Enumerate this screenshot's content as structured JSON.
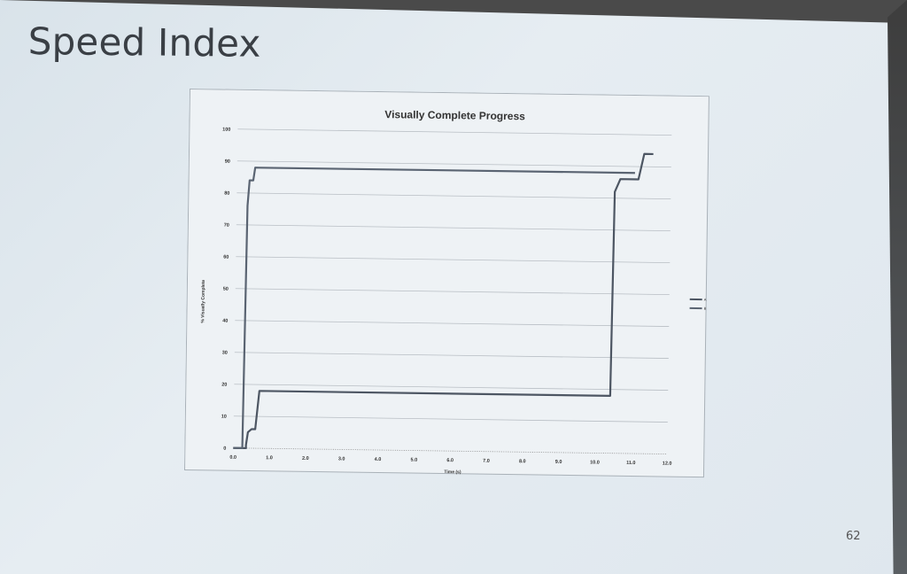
{
  "slide": {
    "title": "Speed Index",
    "page_number": "62"
  },
  "chart_data": {
    "type": "line",
    "title": "Visually Complete Progress",
    "xlabel": "Time (s)",
    "ylabel": "% Visually Complete",
    "xlim": [
      0,
      12
    ],
    "ylim": [
      0,
      100
    ],
    "x_ticks": [
      "0.0",
      "1.0",
      "2.0",
      "3.0",
      "4.0",
      "5.0",
      "6.0",
      "7.0",
      "8.0",
      "9.0",
      "10.0",
      "11.0",
      "12.0"
    ],
    "y_ticks": [
      "0",
      "10",
      "20",
      "30",
      "40",
      "50",
      "60",
      "70",
      "80",
      "90",
      "100"
    ],
    "grid": true,
    "legend_position": "right",
    "series": [
      {
        "name": "A",
        "color": "#4d5663",
        "points": [
          [
            0.0,
            0
          ],
          [
            0.35,
            0
          ],
          [
            0.35,
            1
          ],
          [
            0.4,
            5
          ],
          [
            0.5,
            6
          ],
          [
            0.6,
            6
          ],
          [
            0.7,
            18
          ],
          [
            10.4,
            18
          ],
          [
            10.45,
            82
          ],
          [
            10.6,
            86
          ],
          [
            11.1,
            86
          ],
          [
            11.25,
            94
          ],
          [
            11.5,
            94
          ]
        ]
      },
      {
        "name": "B",
        "color": "#5a6472",
        "points": [
          [
            0.0,
            0
          ],
          [
            0.25,
            0
          ],
          [
            0.3,
            76
          ],
          [
            0.35,
            84
          ],
          [
            0.45,
            84
          ],
          [
            0.5,
            88
          ],
          [
            0.6,
            88
          ],
          [
            11.0,
            88
          ]
        ]
      }
    ]
  }
}
